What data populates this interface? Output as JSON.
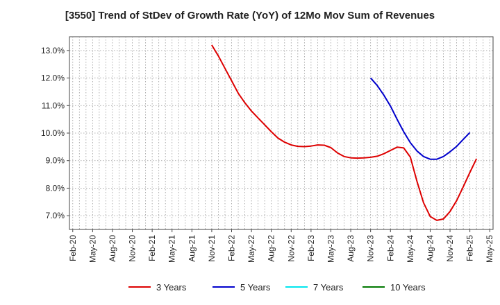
{
  "chart_data": {
    "type": "line",
    "title": "[3550]  Trend of StDev of Growth Rate (YoY) of 12Mo Mov Sum of Revenues",
    "xlabel": "",
    "ylabel": "",
    "ylim": [
      6.5,
      13.5
    ],
    "y_ticks": [
      7.0,
      8.0,
      9.0,
      10.0,
      11.0,
      12.0,
      13.0
    ],
    "y_tick_labels": [
      "7.0%",
      "8.0%",
      "9.0%",
      "10.0%",
      "11.0%",
      "12.0%",
      "13.0%"
    ],
    "x_tick_labels": [
      "Feb-20",
      "May-20",
      "Aug-20",
      "Nov-20",
      "Feb-21",
      "May-21",
      "Aug-21",
      "Nov-21",
      "Feb-22",
      "May-22",
      "Aug-22",
      "Nov-22",
      "Feb-23",
      "May-23",
      "Aug-23",
      "Nov-23",
      "Feb-24",
      "May-24",
      "Aug-24",
      "Nov-24",
      "Feb-25",
      "May-25"
    ],
    "x_count": 64,
    "grid": true,
    "legend_position": "bottom",
    "series": [
      {
        "name": "3 Years",
        "color": "#dd0000",
        "start_index": 21,
        "values": [
          13.2,
          12.8,
          12.35,
          11.9,
          11.45,
          11.1,
          10.8,
          10.55,
          10.3,
          10.05,
          9.82,
          9.67,
          9.57,
          9.52,
          9.51,
          9.53,
          9.57,
          9.56,
          9.47,
          9.28,
          9.15,
          9.1,
          9.09,
          9.1,
          9.12,
          9.16,
          9.25,
          9.37,
          9.49,
          9.46,
          9.13,
          8.25,
          7.47,
          6.97,
          6.83,
          6.88,
          7.15,
          7.55,
          8.05,
          8.57,
          9.07
        ]
      },
      {
        "name": "5 Years",
        "color": "#0000cc",
        "start_index": 45,
        "values": [
          12.0,
          11.73,
          11.38,
          10.98,
          10.5,
          10.05,
          9.65,
          9.35,
          9.15,
          9.05,
          9.05,
          9.15,
          9.32,
          9.52,
          9.77,
          10.02
        ]
      },
      {
        "name": "7 Years",
        "color": "#00e5ee",
        "start_index": 0,
        "values": []
      },
      {
        "name": "10 Years",
        "color": "#007700",
        "start_index": 0,
        "values": []
      }
    ]
  }
}
